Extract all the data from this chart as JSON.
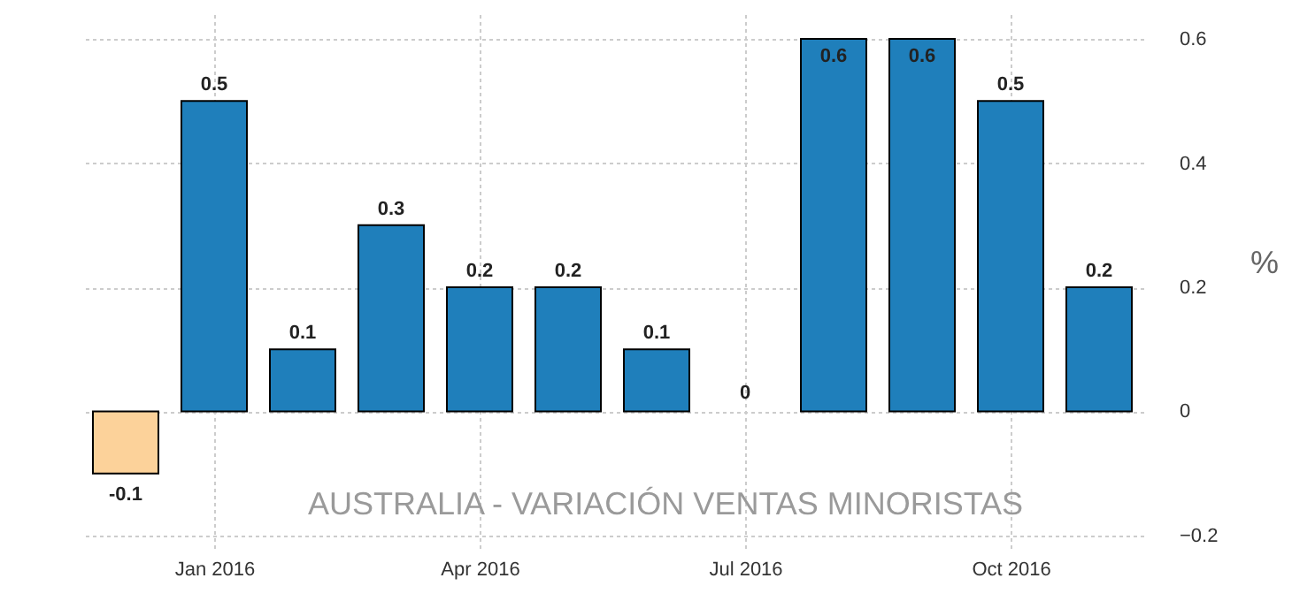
{
  "chart_data": {
    "type": "bar",
    "title": "AUSTRALIA - VARIACIÓN VENTAS MINORISTAS",
    "ylabel": "%",
    "categories": [
      null,
      "Jan 2016",
      null,
      null,
      "Apr 2016",
      null,
      null,
      "Jul 2016",
      null,
      null,
      "Oct 2016",
      null
    ],
    "values": [
      -0.1,
      0.5,
      0.1,
      0.3,
      0.2,
      0.2,
      0.1,
      0,
      0.6,
      0.6,
      0.5,
      0.2
    ],
    "colors": [
      "#fcd29a",
      "#1f7fbb",
      "#1f7fbb",
      "#1f7fbb",
      "#1f7fbb",
      "#1f7fbb",
      "#1f7fbb",
      "#1f7fbb",
      "#1f7fbb",
      "#1f7fbb",
      "#1f7fbb",
      "#1f7fbb"
    ],
    "ylim": [
      -0.22,
      0.64
    ],
    "yticks": [
      -0.2,
      0,
      0.2,
      0.4,
      0.6
    ],
    "grid": true,
    "data_labels": true
  }
}
